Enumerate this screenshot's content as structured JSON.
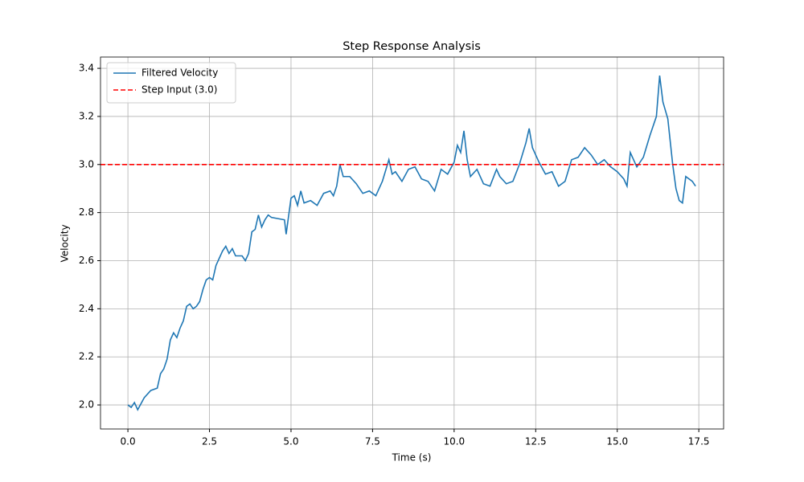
{
  "chart_data": {
    "type": "line",
    "title": "Step Response Analysis",
    "x_label": "Time (s)",
    "y_label": "Velocity",
    "x": [
      0,
      0.1,
      0.2,
      0.3,
      0.5,
      0.7,
      0.9,
      1.0,
      1.1,
      1.2,
      1.3,
      1.4,
      1.5,
      1.6,
      1.7,
      1.8,
      1.9,
      2.0,
      2.1,
      2.2,
      2.3,
      2.4,
      2.5,
      2.6,
      2.7,
      2.8,
      2.9,
      3.0,
      3.1,
      3.2,
      3.3,
      3.5,
      3.6,
      3.7,
      3.8,
      3.9,
      4.0,
      4.1,
      4.2,
      4.3,
      4.4,
      4.8,
      4.85,
      4.9,
      5.0,
      5.1,
      5.2,
      5.3,
      5.4,
      5.6,
      5.8,
      6.0,
      6.2,
      6.3,
      6.4,
      6.5,
      6.6,
      6.8,
      7.0,
      7.2,
      7.4,
      7.6,
      7.8,
      8.0,
      8.1,
      8.2,
      8.4,
      8.6,
      8.8,
      9.0,
      9.2,
      9.4,
      9.6,
      9.8,
      10.0,
      10.1,
      10.2,
      10.3,
      10.4,
      10.5,
      10.7,
      10.9,
      11.1,
      11.3,
      11.4,
      11.6,
      11.8,
      12.0,
      12.2,
      12.3,
      12.4,
      12.6,
      12.8,
      13.0,
      13.2,
      13.4,
      13.6,
      13.8,
      14.0,
      14.2,
      14.4,
      14.6,
      14.8,
      15.0,
      15.2,
      15.3,
      15.4,
      15.6,
      15.8,
      16.0,
      16.2,
      16.3,
      16.4,
      16.55,
      16.7,
      16.8,
      16.9,
      17.0,
      17.1,
      17.3,
      17.4
    ],
    "series": [
      {
        "name": "Filtered Velocity",
        "color": "#1f77b4",
        "values": [
          2.0,
          1.99,
          2.01,
          1.98,
          2.03,
          2.06,
          2.07,
          2.13,
          2.15,
          2.19,
          2.27,
          2.3,
          2.28,
          2.32,
          2.35,
          2.41,
          2.42,
          2.4,
          2.41,
          2.43,
          2.48,
          2.52,
          2.53,
          2.52,
          2.58,
          2.61,
          2.64,
          2.66,
          2.63,
          2.65,
          2.62,
          2.62,
          2.6,
          2.63,
          2.72,
          2.73,
          2.79,
          2.74,
          2.77,
          2.79,
          2.78,
          2.77,
          2.71,
          2.76,
          2.86,
          2.87,
          2.83,
          2.89,
          2.84,
          2.85,
          2.83,
          2.88,
          2.89,
          2.87,
          2.91,
          3.0,
          2.95,
          2.95,
          2.92,
          2.88,
          2.89,
          2.87,
          2.93,
          3.02,
          2.96,
          2.97,
          2.93,
          2.98,
          2.99,
          2.94,
          2.93,
          2.89,
          2.98,
          2.96,
          3.01,
          3.08,
          3.05,
          3.14,
          3.02,
          2.95,
          2.98,
          2.92,
          2.91,
          2.98,
          2.95,
          2.92,
          2.93,
          3.0,
          3.09,
          3.15,
          3.07,
          3.01,
          2.96,
          2.97,
          2.91,
          2.93,
          3.02,
          3.03,
          3.07,
          3.04,
          3.0,
          3.02,
          2.99,
          2.97,
          2.94,
          2.91,
          3.05,
          2.99,
          3.03,
          3.12,
          3.2,
          3.37,
          3.26,
          3.19,
          3.0,
          2.9,
          2.85,
          2.84,
          2.95,
          2.93,
          2.91
        ]
      }
    ],
    "reference_line": {
      "name": "Step Input (3.0)",
      "value": 3.0,
      "color": "#ff0000",
      "dashed": true
    },
    "xlim": [
      -0.84,
      18.26
    ],
    "ylim": [
      1.9,
      3.447
    ],
    "xticks": [
      {
        "value": 0,
        "label": "0.0"
      },
      2.5,
      {
        "value": 5,
        "label": "5.0"
      },
      7.5,
      {
        "value": 10,
        "label": "10.0"
      },
      12.5,
      {
        "value": 15,
        "label": "15.0"
      },
      17.5
    ],
    "yticks": [
      {
        "value": 2,
        "label": "2.0"
      },
      2.2,
      2.4,
      2.6,
      2.8,
      {
        "value": 3,
        "label": "3.0"
      },
      3.2,
      3.4
    ],
    "grid": true,
    "legend": "upper left"
  }
}
